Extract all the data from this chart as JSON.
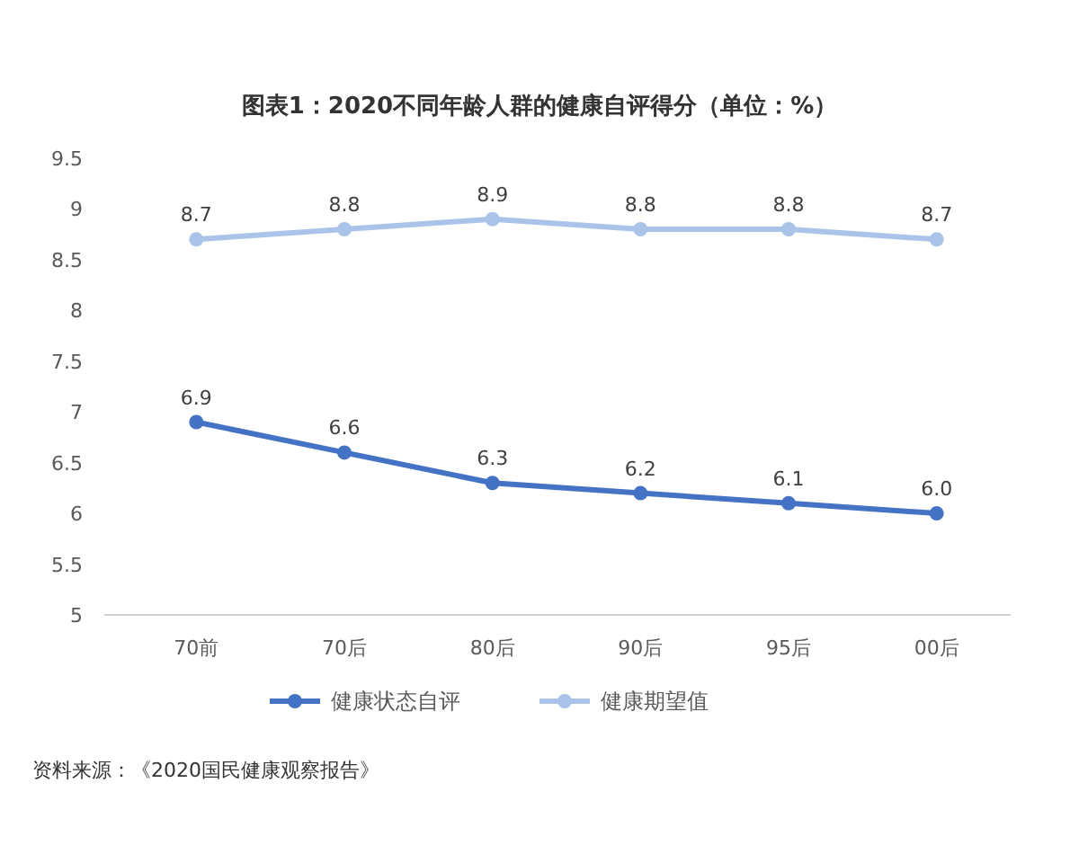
{
  "chart_data": {
    "type": "line",
    "title": "图表1：2020不同年龄人群的健康自评得分（单位：%）",
    "categories": [
      "70前",
      "70后",
      "80后",
      "90后",
      "95后",
      "00后"
    ],
    "series": [
      {
        "name": "健康状态自评",
        "color": "#4472c4",
        "values": [
          6.9,
          6.6,
          6.3,
          6.2,
          6.1,
          6.0
        ],
        "value_labels": [
          "6.9",
          "6.6",
          "6.3",
          "6.2",
          "6.1",
          "6.0"
        ]
      },
      {
        "name": "健康期望值",
        "color": "#a9c4e8",
        "values": [
          8.7,
          8.8,
          8.9,
          8.8,
          8.8,
          8.7
        ],
        "value_labels": [
          "8.7",
          "8.8",
          "8.9",
          "8.8",
          "8.8",
          "8.7"
        ]
      }
    ],
    "ylim": [
      5,
      9.5
    ],
    "yticks": [
      5,
      5.5,
      6,
      6.5,
      7,
      7.5,
      8,
      8.5,
      9,
      9.5
    ],
    "marker": "circle",
    "line_style": "solid",
    "legend": "bottom",
    "grid": false,
    "annotations": [
      "资料来源：《2020国民健康观察报告》"
    ]
  }
}
